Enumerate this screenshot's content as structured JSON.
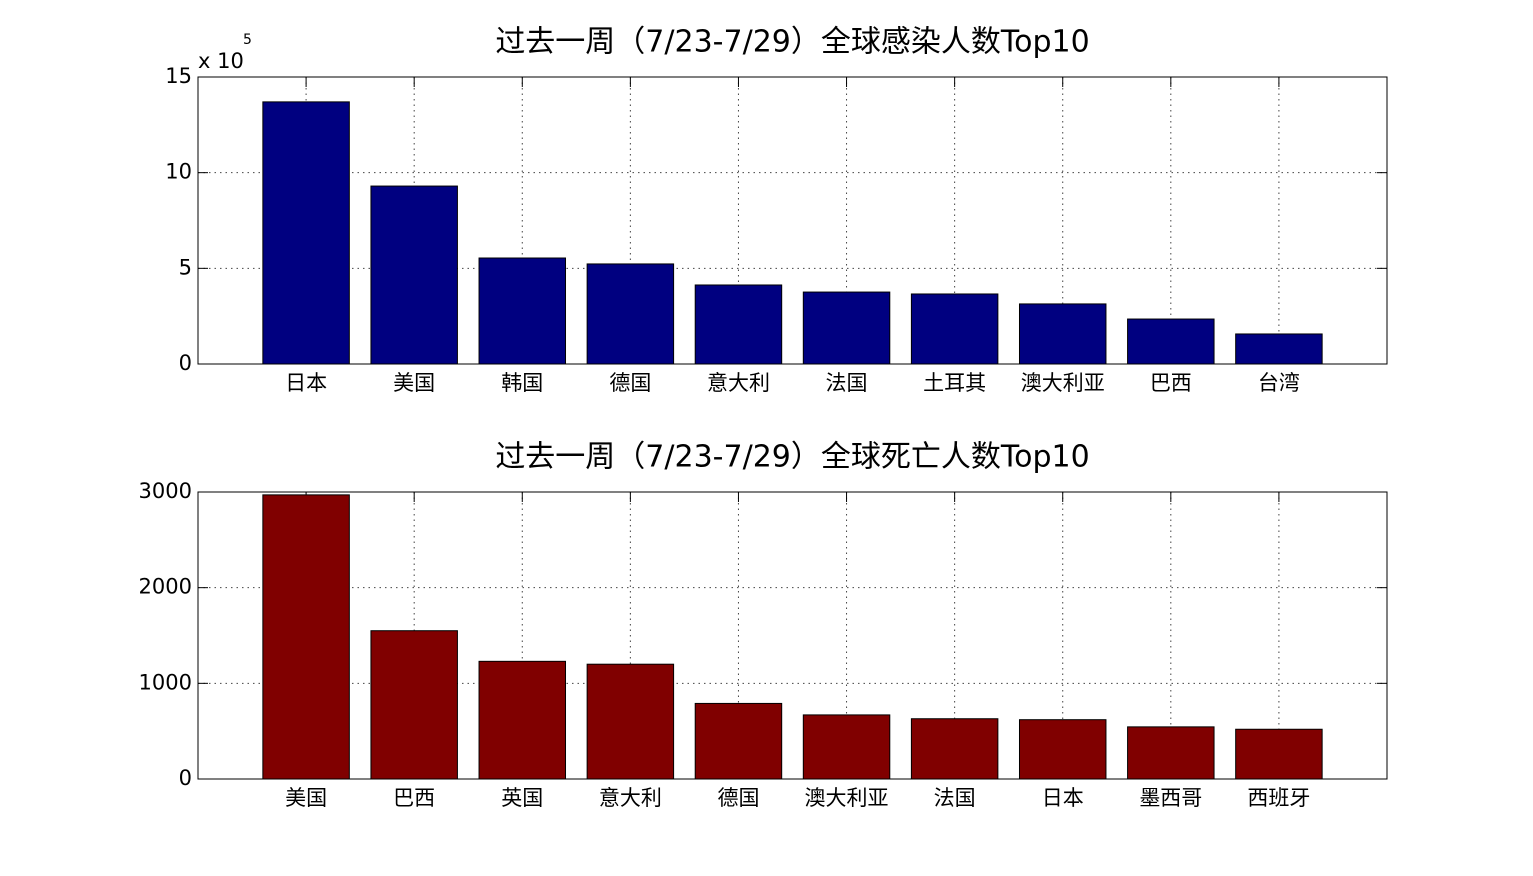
{
  "chart_data": [
    {
      "type": "bar",
      "title": "过去一周（7/23-7/29）全球感染人数Top10",
      "categories": [
        "日本",
        "美国",
        "韩国",
        "德国",
        "意大利",
        "法国",
        "土耳其",
        "澳大利亚",
        "巴西",
        "台湾"
      ],
      "values": [
        13.7,
        9.3,
        5.54,
        5.23,
        4.13,
        3.76,
        3.66,
        3.14,
        2.35,
        1.57
      ],
      "color": "#000080",
      "ylim": [
        0,
        15
      ],
      "yticks": [
        0,
        5,
        10,
        15
      ],
      "y_multiplier": {
        "text": "x 10",
        "exponent": "5"
      },
      "grid": true
    },
    {
      "type": "bar",
      "title": "过去一周（7/23-7/29）全球死亡人数Top10",
      "categories": [
        "美国",
        "巴西",
        "英国",
        "意大利",
        "德国",
        "澳大利亚",
        "法国",
        "日本",
        "墨西哥",
        "西班牙"
      ],
      "values": [
        2970,
        1550,
        1230,
        1200,
        790,
        670,
        630,
        620,
        545,
        520
      ],
      "color": "#800000",
      "ylim": [
        0,
        3000
      ],
      "yticks": [
        0,
        1000,
        2000,
        3000
      ],
      "grid": true
    }
  ]
}
